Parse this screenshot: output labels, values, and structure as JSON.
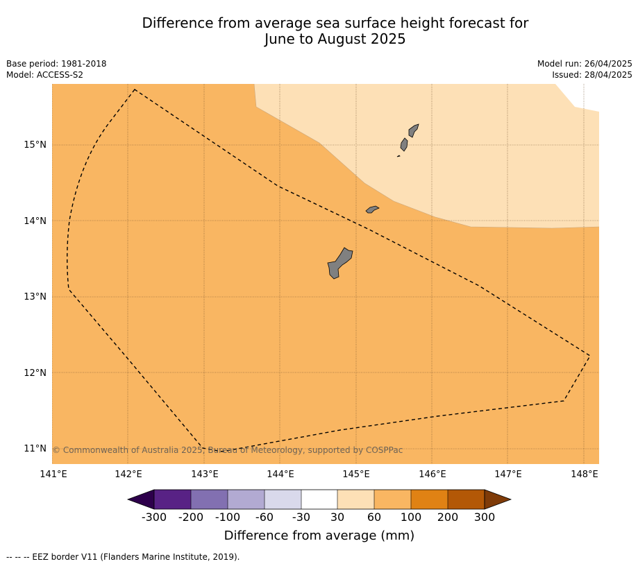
{
  "title": {
    "line1": "Difference from average sea surface height forecast for",
    "line2": "June to August 2025"
  },
  "meta": {
    "base_period": "Base period: 1981-2018",
    "model": "Model: ACCESS-S2",
    "model_run": "Model run: 26/04/2025",
    "issued": "Issued: 28/04/2025"
  },
  "map": {
    "lon_ticks": [
      "141°E",
      "142°E",
      "143°E",
      "144°E",
      "145°E",
      "146°E",
      "147°E",
      "148°E"
    ],
    "lat_ticks": [
      "15°N",
      "14°N",
      "13°N",
      "12°N",
      "11°N"
    ],
    "copyright": "© Commonwealth of Australia 2025, Bureau of Meteorology, supported by COSPPac",
    "fill_colors": {
      "band_60_100": "#f9b662",
      "band_30_60": "#fde0b6",
      "band_-30_30": "#ffffff",
      "land": "#808080"
    }
  },
  "colorbar": {
    "labels": [
      "-300",
      "-200",
      "-100",
      "-60",
      "-30",
      "30",
      "60",
      "100",
      "200",
      "300"
    ],
    "colors": [
      "#582285",
      "#8270b1",
      "#b2aad2",
      "#d9d9eb",
      "#ffffff",
      "#fde0b6",
      "#f9b662",
      "#e08214",
      "#b35806"
    ],
    "extend_low_color": "#2d004b",
    "extend_high_color": "#7f3b08",
    "title": "Difference from average (mm)"
  },
  "footnote": "--  --  -- EEZ border V11 (Flanders Marine Institute, 2019)."
}
